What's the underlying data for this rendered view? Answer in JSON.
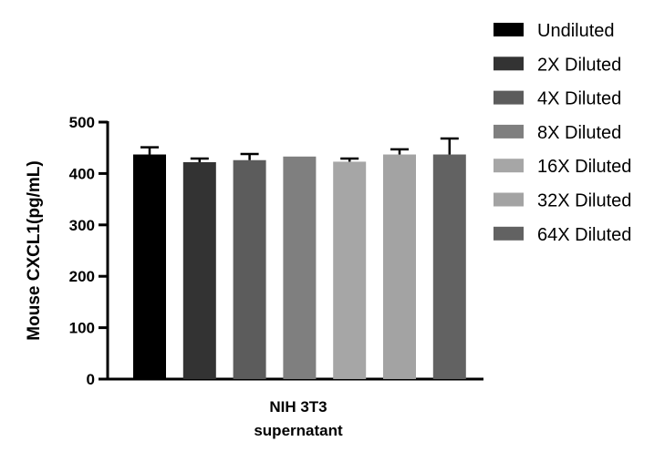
{
  "chart_data": {
    "type": "bar",
    "categories": [
      "NIH 3T3",
      "supernatant"
    ],
    "ylabel": "Mouse CXCL1(pg/mL)",
    "ylim": [
      0,
      500
    ],
    "yticks": [
      0,
      100,
      200,
      300,
      400,
      500
    ],
    "grid": false,
    "legend_position": "right",
    "series": [
      {
        "name": "Undiluted",
        "value": 437,
        "error": 14,
        "color": "#000000"
      },
      {
        "name": "2X Diluted",
        "value": 422,
        "error": 7,
        "color": "#333333"
      },
      {
        "name": "4X Diluted",
        "value": 426,
        "error": 12,
        "color": "#5c5c5c"
      },
      {
        "name": "8X Diluted",
        "value": 433,
        "error": 0,
        "color": "#7f7f7f"
      },
      {
        "name": "16X Diluted",
        "value": 423,
        "error": 6,
        "color": "#a6a6a6"
      },
      {
        "name": "32X Diluted",
        "value": 437,
        "error": 10,
        "color": "#a3a3a3"
      },
      {
        "name": "64X Diluted",
        "value": 437,
        "error": 31,
        "color": "#626262"
      }
    ]
  }
}
